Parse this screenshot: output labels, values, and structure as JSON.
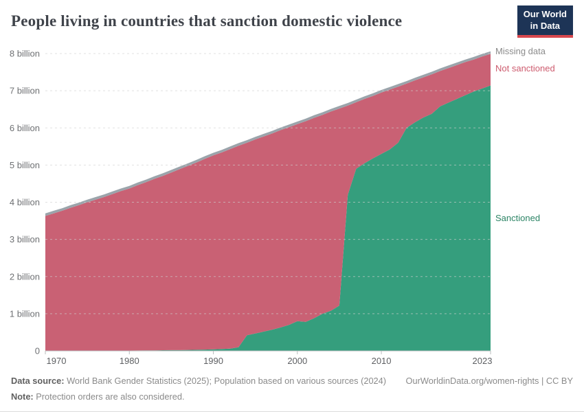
{
  "header": {
    "title": "People living in countries that sanction domestic violence",
    "logo": {
      "line1": "Our World",
      "line2": "in Data"
    }
  },
  "legend": {
    "missing": "Missing data",
    "not_sanctioned": "Not sanctioned",
    "sanctioned": "Sanctioned"
  },
  "footer": {
    "source_label": "Data source:",
    "source_text": " World Bank Gender Statistics (2025); Population based on various sources (2024)",
    "link_text": "OurWorldinData.org/women-rights | CC BY",
    "note_label": "Note:",
    "note_text": " Protection orders are also considered."
  },
  "colors": {
    "sanctioned_area": "#359e7d",
    "not_sanctioned_area": "#c96174",
    "missing_area": "#9ba4ab",
    "logo_navy": "#1d3456",
    "logo_red": "#d8484e",
    "gridline": "#cfcfcf",
    "axis": "#b9bcbe"
  },
  "chart_data": {
    "type": "area",
    "stacked": true,
    "title": "People living in countries that sanction domestic violence",
    "xlabel": "",
    "ylabel": "",
    "grid": true,
    "legend_position": "right",
    "x_range": [
      1970,
      2023
    ],
    "y_range_billions": [
      0,
      8
    ],
    "x_ticks": [
      1970,
      1980,
      1990,
      2000,
      2010,
      2023
    ],
    "y_tick_labels": [
      "0",
      "1 billion",
      "2 billion",
      "3 billion",
      "4 billion",
      "5 billion",
      "6 billion",
      "7 billion",
      "8 billion"
    ],
    "years": [
      1970,
      1971,
      1972,
      1973,
      1974,
      1975,
      1976,
      1977,
      1978,
      1979,
      1980,
      1981,
      1982,
      1983,
      1984,
      1985,
      1986,
      1987,
      1988,
      1989,
      1990,
      1991,
      1992,
      1993,
      1994,
      1995,
      1996,
      1997,
      1998,
      1999,
      2000,
      2001,
      2002,
      2003,
      2004,
      2005,
      2006,
      2007,
      2008,
      2009,
      2010,
      2011,
      2012,
      2013,
      2014,
      2015,
      2016,
      2017,
      2018,
      2019,
      2020,
      2021,
      2022,
      2023
    ],
    "series": [
      {
        "name": "Sanctioned",
        "color": "#359e7d",
        "values": [
          0,
          0,
          0,
          0,
          0,
          0,
          0.005,
          0.005,
          0.008,
          0.01,
          0.01,
          0.012,
          0.015,
          0.015,
          0.018,
          0.02,
          0.02,
          0.025,
          0.03,
          0.035,
          0.04,
          0.05,
          0.06,
          0.1,
          0.42,
          0.47,
          0.52,
          0.57,
          0.63,
          0.7,
          0.8,
          0.78,
          0.88,
          1.0,
          1.08,
          1.22,
          4.2,
          4.9,
          5.05,
          5.18,
          5.3,
          5.42,
          5.6,
          6.0,
          6.15,
          6.28,
          6.38,
          6.58,
          6.68,
          6.78,
          6.88,
          6.98,
          7.06,
          7.14
        ]
      },
      {
        "name": "Not sanctioned",
        "color": "#c96174",
        "values": [
          3.63,
          3.7,
          3.77,
          3.85,
          3.92,
          4.0,
          4.065,
          4.135,
          4.212,
          4.29,
          4.36,
          4.448,
          4.525,
          4.615,
          4.692,
          4.78,
          4.87,
          4.955,
          5.04,
          5.135,
          5.22,
          5.29,
          5.37,
          5.42,
          5.18,
          5.22,
          5.25,
          5.28,
          5.31,
          5.32,
          5.3,
          5.4,
          5.39,
          5.35,
          5.36,
          5.3,
          2.4,
          1.79,
          1.73,
          1.68,
          1.65,
          1.61,
          1.51,
          1.19,
          1.13,
          1.08,
          1.06,
          0.95,
          0.93,
          0.91,
          0.89,
          0.86,
          0.86,
          0.85
        ]
      },
      {
        "name": "Missing data",
        "color": "#9ba4ab",
        "values": [
          0.07,
          0.07,
          0.07,
          0.07,
          0.07,
          0.07,
          0.07,
          0.07,
          0.07,
          0.07,
          0.07,
          0.07,
          0.07,
          0.07,
          0.07,
          0.07,
          0.07,
          0.07,
          0.07,
          0.07,
          0.07,
          0.07,
          0.07,
          0.07,
          0.07,
          0.07,
          0.07,
          0.07,
          0.07,
          0.07,
          0.07,
          0.07,
          0.07,
          0.07,
          0.07,
          0.07,
          0.07,
          0.07,
          0.07,
          0.07,
          0.07,
          0.07,
          0.07,
          0.07,
          0.07,
          0.07,
          0.07,
          0.07,
          0.07,
          0.07,
          0.07,
          0.07,
          0.07,
          0.07
        ]
      }
    ]
  }
}
